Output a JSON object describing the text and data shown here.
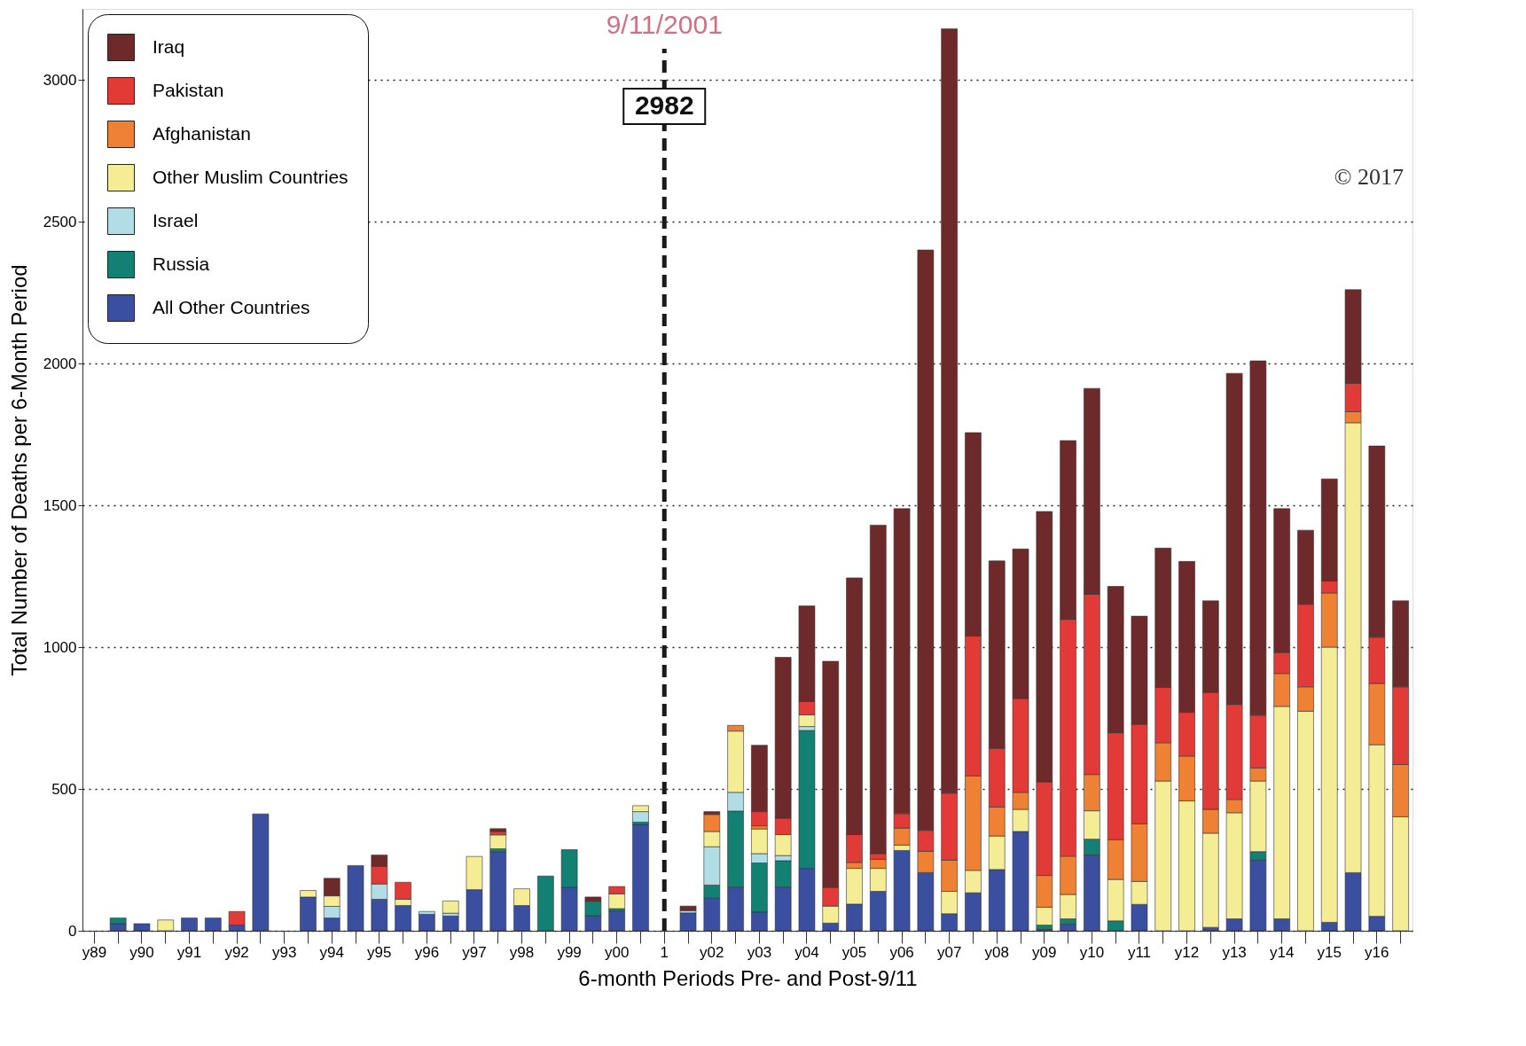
{
  "chart_data": {
    "type": "bar",
    "stacked": true,
    "xlabel": "6-month Periods Pre- and Post-9/11",
    "ylabel": "Total Number of Deaths per 6-Month Period",
    "categories": [
      "y89",
      null,
      "y90",
      null,
      "y91",
      null,
      "y92",
      null,
      "y93",
      null,
      "y94",
      null,
      "y95",
      null,
      "y96",
      null,
      "y97",
      null,
      "y98",
      null,
      "y99",
      null,
      "y00",
      null,
      "1",
      null,
      "y02",
      null,
      "y03",
      null,
      "y04",
      null,
      "y05",
      null,
      "y06",
      null,
      "y07",
      null,
      "y08",
      null,
      "y09",
      null,
      "y10",
      null,
      "y11",
      null,
      "y12",
      null,
      "y13",
      null,
      "y14",
      null,
      "y15",
      null,
      "y16",
      null
    ],
    "series": [
      {
        "name": "All Other Countries",
        "color": "#3a4fa0",
        "values": [
          null,
          25,
          25,
          0,
          45,
          45,
          20,
          412,
          null,
          119,
          45,
          230,
          111,
          89,
          58,
          52,
          145,
          279,
          89,
          0,
          153,
          53,
          70,
          375,
          null,
          63,
          115,
          154,
          66,
          154,
          220,
          27,
          94,
          139,
          283,
          205,
          60,
          134,
          216,
          350,
          5,
          23,
          267,
          0,
          93,
          0,
          0,
          12,
          42,
          249,
          42,
          0,
          30,
          205,
          51,
          0
        ]
      },
      {
        "name": "Russia",
        "color": "#138074",
        "values": [
          null,
          20,
          0,
          0,
          0,
          0,
          0,
          0,
          null,
          0,
          0,
          0,
          0,
          0,
          0,
          0,
          null,
          10,
          0,
          193,
          133,
          51,
          8,
          8,
          null,
          0,
          46,
          268,
          173,
          93,
          486,
          0,
          0,
          0,
          0,
          0,
          0,
          0,
          0,
          0,
          15,
          19,
          56,
          35,
          0,
          0,
          0,
          0,
          0,
          30,
          0,
          0,
          0,
          0,
          0,
          0
        ]
      },
      {
        "name": "Israel",
        "color": "#b0dde6",
        "values": [
          null,
          0,
          0,
          0,
          0,
          0,
          0,
          0,
          null,
          0,
          41,
          0,
          54,
          0,
          10,
          10,
          0,
          0,
          0,
          0,
          0,
          0,
          0,
          37,
          null,
          8,
          135,
          66,
          33,
          18,
          14,
          0,
          0,
          0,
          0,
          0,
          0,
          0,
          0,
          0,
          0,
          0,
          0,
          0,
          0,
          0,
          0,
          0,
          0,
          0,
          0,
          0,
          0,
          0,
          0,
          0
        ]
      },
      {
        "name": "Other Muslim Countries",
        "color": "#f5ec96",
        "values": [
          null,
          0,
          0,
          38,
          0,
          0,
          0,
          0,
          null,
          23,
          37,
          0,
          0,
          22,
          0,
          43,
          117,
          49,
          59,
          0,
          0,
          0,
          52,
          21,
          null,
          0,
          54,
          216,
          87,
          74,
          41,
          60,
          126,
          81,
          19,
          0,
          79,
          79,
          118,
          78,
          63,
          86,
          100,
          146,
          81,
          528,
          458,
          332,
          374,
          249,
          749,
          774,
          970,
          1586,
          605,
          402
        ]
      },
      {
        "name": "Afghanistan",
        "color": "#ee8133",
        "values": [
          null,
          0,
          0,
          0,
          0,
          0,
          0,
          0,
          null,
          0,
          0,
          0,
          0,
          0,
          0,
          0,
          0,
          0,
          0,
          0,
          0,
          0,
          0,
          0,
          null,
          0,
          60,
          20,
          11,
          0,
          0,
          0,
          21,
          32,
          60,
          75,
          110,
          333,
          102,
          60,
          112,
          135,
          128,
          140,
          203,
          135,
          158,
          84,
          47,
          46,
          116,
          86,
          191,
          39,
          216,
          184
        ]
      },
      {
        "name": "Pakistan",
        "color": "#e23a37",
        "values": [
          null,
          0,
          0,
          0,
          0,
          0,
          48,
          0,
          null,
          0,
          0,
          0,
          62,
          60,
          0,
          0,
          0,
          12,
          0,
          0,
          0,
          0,
          26,
          0,
          null,
          0,
          0,
          0,
          50,
          58,
          47,
          66,
          98,
          20,
          51,
          74,
          236,
          493,
          207,
          331,
          330,
          835,
          635,
          377,
          351,
          195,
          154,
          412,
          335,
          186,
          74,
          291,
          42,
          100,
          163,
          274
        ]
      },
      {
        "name": "Iraq",
        "color": "#6e2a2a",
        "values": [
          null,
          0,
          0,
          0,
          0,
          0,
          0,
          0,
          null,
          0,
          62,
          0,
          40,
          0,
          0,
          0,
          0,
          10,
          0,
          0,
          0,
          15,
          0,
          0,
          null,
          16,
          10,
          0,
          234,
          567,
          337,
          797,
          905,
          1158,
          1075,
          2046,
          2695,
          717,
          661,
          527,
          953,
          630,
          726,
          516,
          381,
          491,
          532,
          323,
          1167,
          1249,
          507,
          261,
          360,
          330,
          674,
          303
        ]
      }
    ],
    "ylim": [
      0,
      3250
    ],
    "yticks": [
      0,
      500,
      1000,
      1500,
      2000,
      2500,
      3000
    ],
    "grid": "y",
    "legend": "top left",
    "ref_lines": [
      {
        "axis": "x",
        "value": "1",
        "label": "9/11/2001",
        "color": "#1a1a1a",
        "line_style": "dashed"
      }
    ],
    "annotations": [
      "2982",
      "© 2017"
    ]
  }
}
